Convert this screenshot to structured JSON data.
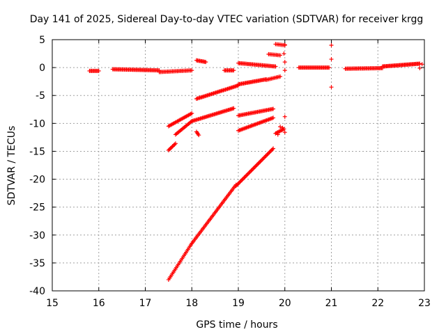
{
  "chart_data": {
    "type": "scatter",
    "title": "Day 141 of 2025, Sidereal Day-to-day VTEC variation (SDTVAR) for receiver krgg",
    "xlabel": "GPS time / hours",
    "ylabel": "SDTVAR / TECUs",
    "xlim": [
      15,
      23
    ],
    "ylim": [
      -40,
      5
    ],
    "x_ticks": [
      15,
      16,
      17,
      18,
      19,
      20,
      21,
      22,
      23
    ],
    "y_ticks": [
      5,
      0,
      -5,
      -10,
      -15,
      -20,
      -25,
      -30,
      -35,
      -40
    ],
    "grid": true,
    "legend": "none",
    "marker": "+",
    "color": "#ff0000",
    "segments": [
      {
        "x0": 15.8,
        "x1": 16.0,
        "y0": -0.6,
        "y1": -0.6,
        "n": 10
      },
      {
        "x0": 16.3,
        "x1": 17.3,
        "y0": -0.3,
        "y1": -0.5,
        "n": 45
      },
      {
        "x0": 17.3,
        "x1": 18.0,
        "y0": -0.8,
        "y1": -0.5,
        "n": 28
      },
      {
        "x0": 18.1,
        "x1": 18.3,
        "y0": 1.3,
        "y1": 1.0,
        "n": 10
      },
      {
        "x0": 18.7,
        "x1": 18.9,
        "y0": -0.5,
        "y1": -0.5,
        "n": 10
      },
      {
        "x0": 19.0,
        "x1": 19.8,
        "y0": 0.8,
        "y1": 0.2,
        "n": 35
      },
      {
        "x0": 19.65,
        "x1": 19.9,
        "y0": 2.4,
        "y1": 2.2,
        "n": 10
      },
      {
        "x0": 19.8,
        "x1": 20.0,
        "y0": 4.2,
        "y1": 4.0,
        "n": 8
      },
      {
        "x0": 20.3,
        "x1": 20.95,
        "y0": 0.0,
        "y1": 0.0,
        "n": 30
      },
      {
        "x0": 21.3,
        "x1": 22.1,
        "y0": -0.2,
        "y1": -0.1,
        "n": 35
      },
      {
        "x0": 22.1,
        "x1": 22.9,
        "y0": 0.2,
        "y1": 0.7,
        "n": 40
      },
      {
        "x0": 17.5,
        "x1": 18.0,
        "y0": -10.5,
        "y1": -8.2,
        "n": 22
      },
      {
        "x0": 18.1,
        "x1": 19.0,
        "y0": -5.6,
        "y1": -3.2,
        "n": 40
      },
      {
        "x0": 19.0,
        "x1": 19.6,
        "y0": -3.0,
        "y1": -2.1,
        "n": 28
      },
      {
        "x0": 19.6,
        "x1": 19.9,
        "y0": -2.2,
        "y1": -1.6,
        "n": 12
      },
      {
        "x0": 17.5,
        "x1": 17.65,
        "y0": -14.8,
        "y1": -13.6,
        "n": 8
      },
      {
        "x0": 17.65,
        "x1": 18.0,
        "y0": -12.0,
        "y1": -9.6,
        "n": 16
      },
      {
        "x0": 18.0,
        "x1": 18.9,
        "y0": -9.6,
        "y1": -7.3,
        "n": 40
      },
      {
        "x0": 18.1,
        "x1": 18.15,
        "y0": -11.5,
        "y1": -12.1,
        "n": 4
      },
      {
        "x0": 19.0,
        "x1": 19.75,
        "y0": -8.6,
        "y1": -7.4,
        "n": 32
      },
      {
        "x0": 19.0,
        "x1": 19.75,
        "y0": -11.3,
        "y1": -9.0,
        "n": 32
      },
      {
        "x0": 19.8,
        "x1": 19.98,
        "y0": -11.8,
        "y1": -11.0,
        "n": 9
      },
      {
        "x0": 17.5,
        "x1": 18.0,
        "y0": -38.0,
        "y1": -31.5,
        "n": 25
      },
      {
        "x0": 18.0,
        "x1": 18.95,
        "y0": -31.5,
        "y1": -21.0,
        "n": 45
      },
      {
        "x0": 18.95,
        "x1": 19.75,
        "y0": -21.2,
        "y1": -14.5,
        "n": 38
      }
    ],
    "points": [
      {
        "x": 19.85,
        "y": -12.0
      },
      {
        "x": 19.9,
        "y": -10.6
      },
      {
        "x": 19.95,
        "y": -10.8
      },
      {
        "x": 20.0,
        "y": -8.8
      },
      {
        "x": 20.0,
        "y": -11.6
      },
      {
        "x": 20.0,
        "y": -0.5
      },
      {
        "x": 20.0,
        "y": 1.0
      },
      {
        "x": 19.98,
        "y": 2.5
      },
      {
        "x": 20.0,
        "y": 4.1
      },
      {
        "x": 21.0,
        "y": 4.0
      },
      {
        "x": 21.0,
        "y": 1.5
      },
      {
        "x": 21.0,
        "y": -3.5
      },
      {
        "x": 22.9,
        "y": -0.1
      },
      {
        "x": 22.95,
        "y": 0.6
      }
    ]
  }
}
